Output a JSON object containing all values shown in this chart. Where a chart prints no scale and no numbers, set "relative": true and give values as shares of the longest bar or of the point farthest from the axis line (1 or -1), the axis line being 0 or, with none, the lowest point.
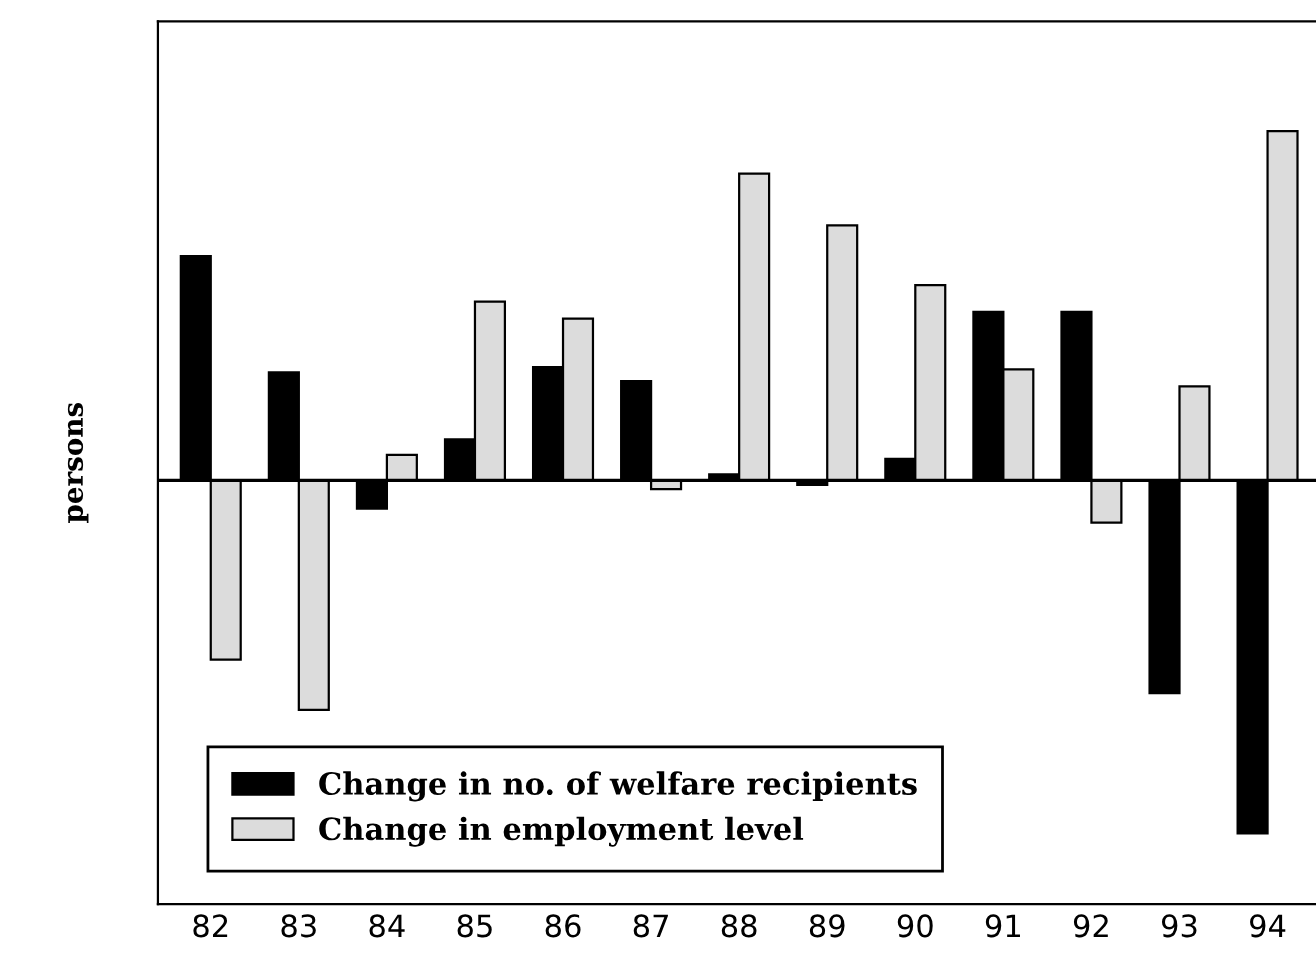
{
  "chart_data": {
    "type": "bar",
    "relative": true,
    "ylabel": "persons",
    "legend": "bottom left",
    "categories": [
      "82",
      "83",
      "84",
      "85",
      "86",
      "87",
      "88",
      "89",
      "90",
      "91",
      "92",
      "93",
      "94"
    ],
    "series": [
      {
        "name": "Change in no. of welfare recipients",
        "color": "#000000",
        "values": [
          0.635,
          0.306,
          -0.08,
          0.116,
          0.321,
          0.281,
          0.017,
          -0.013,
          0.061,
          0.477,
          0.477,
          -0.603,
          -1
        ]
      },
      {
        "name": "Change in employment level",
        "color": "#dcdcdc",
        "values": [
          -0.508,
          -0.65,
          0.072,
          0.506,
          0.458,
          -0.025,
          0.869,
          0.722,
          0.553,
          0.314,
          -0.12,
          0.266,
          0.989
        ]
      }
    ]
  }
}
